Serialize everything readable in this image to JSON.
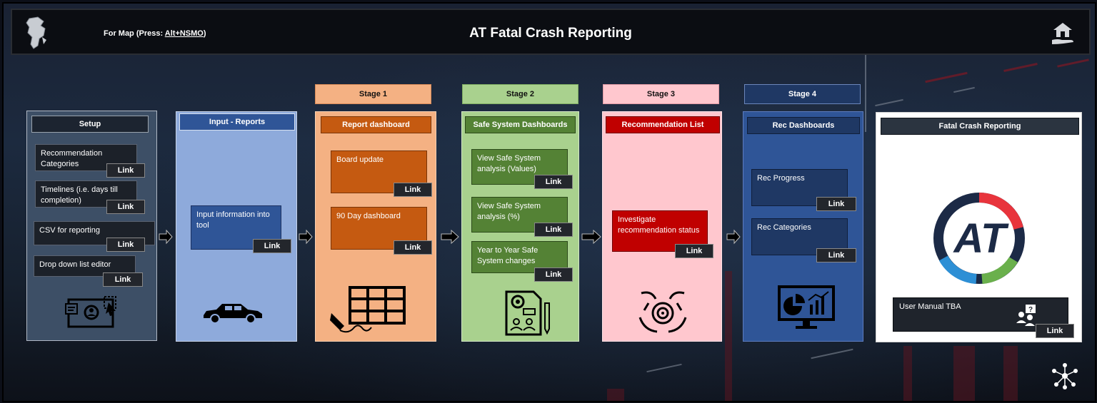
{
  "header": {
    "map_prefix": "For Map  (Press: ",
    "map_shortcut": "Alt+NSMO",
    "map_suffix": ")",
    "title": "AT Fatal Crash Reporting"
  },
  "stages": {
    "stage1": "Stage 1",
    "stage2": "Stage 2",
    "stage3": "Stage 3",
    "stage4": "Stage 4"
  },
  "setup": {
    "title": "Setup",
    "items": [
      {
        "label": "Recommendation Categories",
        "link": "Link"
      },
      {
        "label": "Timelines (i.e. days till completion)",
        "link": "Link"
      },
      {
        "label": "CSV for reporting",
        "link": "Link"
      },
      {
        "label": "Drop down list editor",
        "link": "Link"
      }
    ]
  },
  "input": {
    "title": "Input - Reports",
    "items": [
      {
        "label": "Input information into tool",
        "link": "Link"
      }
    ]
  },
  "report": {
    "title": "Report dashboard",
    "items": [
      {
        "label": "Board update",
        "link": "Link"
      },
      {
        "label": "90 Day dashboard",
        "link": "Link"
      }
    ]
  },
  "safe": {
    "title": "Safe System Dashboards",
    "items": [
      {
        "label": "View Safe System analysis (Values)",
        "link": "Link"
      },
      {
        "label": "View Safe System analysis (%)",
        "link": "Link"
      },
      {
        "label": "Year to Year Safe System changes",
        "link": "Link"
      }
    ]
  },
  "rec": {
    "title": "Recommendation List",
    "items": [
      {
        "label": "Investigate recommendation status",
        "link": "Link"
      }
    ]
  },
  "recdash": {
    "title": "Rec Dashboards",
    "items": [
      {
        "label": "Rec Progress",
        "link": "Link"
      },
      {
        "label": "Rec Categories",
        "link": "Link"
      }
    ]
  },
  "fatal": {
    "title": "Fatal Crash Reporting",
    "logo_text": "AT",
    "manual": "User Manual TBA",
    "manual_link": "Link"
  },
  "colors": {
    "setup_bg": "#3d4f66",
    "input_bg": "#8eaadb",
    "report_bg": "#f4b183",
    "report_item": "#c55a11",
    "safe_bg": "#a9d18e",
    "safe_item": "#548235",
    "rec_bg": "#ffc7ce",
    "rec_item": "#c00000",
    "recdash_bg": "#2f5597",
    "recdash_item": "#1f3864",
    "logo_red": "#e8343c",
    "logo_green": "#6ab04c",
    "logo_blue": "#2d8fd5"
  }
}
